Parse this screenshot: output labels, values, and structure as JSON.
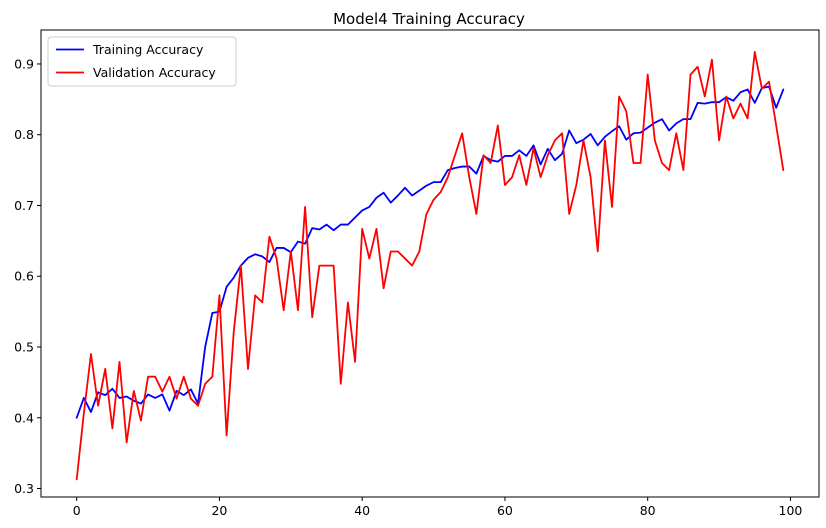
{
  "chart_data": {
    "type": "line",
    "title": "Model4 Training Accuracy",
    "xlabel": "",
    "ylabel": "",
    "xlim": [
      -5,
      104
    ],
    "ylim": [
      0.288,
      0.948
    ],
    "xticks": [
      0,
      20,
      40,
      60,
      80,
      100
    ],
    "yticks": [
      0.3,
      0.4,
      0.5,
      0.6,
      0.7,
      0.8,
      0.9
    ],
    "grid": false,
    "legend_position": "top-left",
    "series": [
      {
        "name": "Training Accuracy",
        "color": "#0000ff",
        "x": [
          0,
          1,
          2,
          3,
          4,
          5,
          6,
          7,
          8,
          9,
          10,
          11,
          12,
          13,
          14,
          15,
          16,
          17,
          18,
          19,
          20,
          21,
          22,
          23,
          24,
          25,
          26,
          27,
          28,
          29,
          30,
          31,
          32,
          33,
          34,
          35,
          36,
          37,
          38,
          39,
          40,
          41,
          42,
          43,
          44,
          45,
          46,
          47,
          48,
          49,
          50,
          51,
          52,
          53,
          54,
          55,
          56,
          57,
          58,
          59,
          60,
          61,
          62,
          63,
          64,
          65,
          66,
          67,
          68,
          69,
          70,
          71,
          72,
          73,
          74,
          75,
          76,
          77,
          78,
          79,
          80,
          81,
          82,
          83,
          84,
          85,
          86,
          87,
          88,
          89,
          90,
          91,
          92,
          93,
          94,
          95,
          96,
          97,
          98,
          99
        ],
        "values": [
          0.4,
          0.428,
          0.408,
          0.436,
          0.432,
          0.441,
          0.428,
          0.43,
          0.424,
          0.42,
          0.433,
          0.428,
          0.433,
          0.41,
          0.438,
          0.432,
          0.44,
          0.42,
          0.5,
          0.548,
          0.55,
          0.585,
          0.598,
          0.615,
          0.626,
          0.631,
          0.628,
          0.62,
          0.64,
          0.64,
          0.634,
          0.649,
          0.646,
          0.668,
          0.666,
          0.673,
          0.665,
          0.673,
          0.673,
          0.683,
          0.693,
          0.698,
          0.711,
          0.718,
          0.704,
          0.714,
          0.725,
          0.714,
          0.721,
          0.728,
          0.733,
          0.733,
          0.75,
          0.753,
          0.755,
          0.755,
          0.745,
          0.77,
          0.764,
          0.762,
          0.77,
          0.77,
          0.778,
          0.77,
          0.785,
          0.758,
          0.78,
          0.764,
          0.773,
          0.806,
          0.788,
          0.793,
          0.801,
          0.785,
          0.797,
          0.805,
          0.812,
          0.793,
          0.802,
          0.803,
          0.81,
          0.817,
          0.822,
          0.806,
          0.816,
          0.822,
          0.822,
          0.845,
          0.844,
          0.846,
          0.846,
          0.853,
          0.848,
          0.86,
          0.864,
          0.845,
          0.866,
          0.868,
          0.838,
          0.864
        ]
      },
      {
        "name": "Validation Accuracy",
        "color": "#ff0000",
        "x": [
          0,
          1,
          2,
          3,
          4,
          5,
          6,
          7,
          8,
          9,
          10,
          11,
          12,
          13,
          14,
          15,
          16,
          17,
          18,
          19,
          20,
          21,
          22,
          23,
          24,
          25,
          26,
          27,
          28,
          29,
          30,
          31,
          32,
          33,
          34,
          35,
          36,
          37,
          38,
          39,
          40,
          41,
          42,
          43,
          44,
          45,
          46,
          47,
          48,
          49,
          50,
          51,
          52,
          53,
          54,
          55,
          56,
          57,
          58,
          59,
          60,
          61,
          62,
          63,
          64,
          65,
          66,
          67,
          68,
          69,
          70,
          71,
          72,
          73,
          74,
          75,
          76,
          77,
          78,
          79,
          80,
          81,
          82,
          83,
          84,
          85,
          86,
          87,
          88,
          89,
          90,
          91,
          92,
          93,
          94,
          95,
          96,
          97,
          98,
          99
        ],
        "values": [
          0.313,
          0.406,
          0.49,
          0.417,
          0.469,
          0.385,
          0.479,
          0.365,
          0.438,
          0.396,
          0.458,
          0.458,
          0.437,
          0.458,
          0.427,
          0.458,
          0.427,
          0.417,
          0.448,
          0.458,
          0.573,
          0.375,
          0.521,
          0.615,
          0.469,
          0.573,
          0.563,
          0.656,
          0.625,
          0.552,
          0.635,
          0.552,
          0.698,
          0.542,
          0.615,
          0.615,
          0.615,
          0.448,
          0.563,
          0.479,
          0.667,
          0.625,
          0.667,
          0.583,
          0.635,
          0.635,
          0.625,
          0.615,
          0.635,
          0.688,
          0.708,
          0.719,
          0.74,
          0.771,
          0.802,
          0.74,
          0.688,
          0.771,
          0.76,
          0.813,
          0.729,
          0.74,
          0.771,
          0.729,
          0.781,
          0.74,
          0.771,
          0.792,
          0.802,
          0.688,
          0.729,
          0.792,
          0.74,
          0.635,
          0.792,
          0.698,
          0.854,
          0.833,
          0.76,
          0.76,
          0.885,
          0.792,
          0.76,
          0.75,
          0.802,
          0.75,
          0.885,
          0.896,
          0.854,
          0.906,
          0.792,
          0.854,
          0.823,
          0.844,
          0.823,
          0.917,
          0.865,
          0.875,
          0.813,
          0.75
        ]
      }
    ]
  }
}
